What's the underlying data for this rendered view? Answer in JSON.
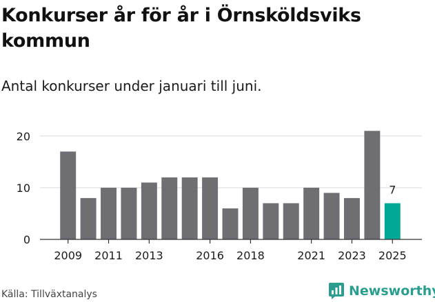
{
  "header": {
    "title": "Konkurser år för år i Örnsköldsviks kommun",
    "subtitle": "Antal konkurser under januari till juni."
  },
  "footer": {
    "source": "Källa: Tillväxtanalys",
    "brand": "Newsworthy"
  },
  "colors": {
    "bar": "#6f6e73",
    "highlight": "#00a896",
    "grid": "#d9d9d9",
    "axis": "#333333",
    "text": "#1a1a1a",
    "brand": "#2a9d8f"
  },
  "chart_data": {
    "type": "bar",
    "categories": [
      "2009",
      "2010",
      "2011",
      "2012",
      "2013",
      "2014",
      "2015",
      "2016",
      "2017",
      "2018",
      "2019",
      "2020",
      "2021",
      "2022",
      "2023",
      "2024",
      "2025"
    ],
    "x_tick_labels": [
      "2009",
      "2011",
      "2013",
      "2016",
      "2018",
      "2021",
      "2023",
      "2025"
    ],
    "values": [
      17,
      8,
      10,
      10,
      11,
      12,
      12,
      12,
      6,
      10,
      7,
      7,
      10,
      9,
      8,
      21,
      7
    ],
    "highlight_category": "2025",
    "data_labels": [
      {
        "category": "2025",
        "text": "7"
      }
    ],
    "y_ticks": [
      0,
      10,
      20
    ],
    "ylim": [
      0,
      21.5
    ],
    "grid": true,
    "title": "Konkurser år för år i Örnsköldsviks kommun",
    "subtitle": "Antal konkurser under januari till juni."
  }
}
